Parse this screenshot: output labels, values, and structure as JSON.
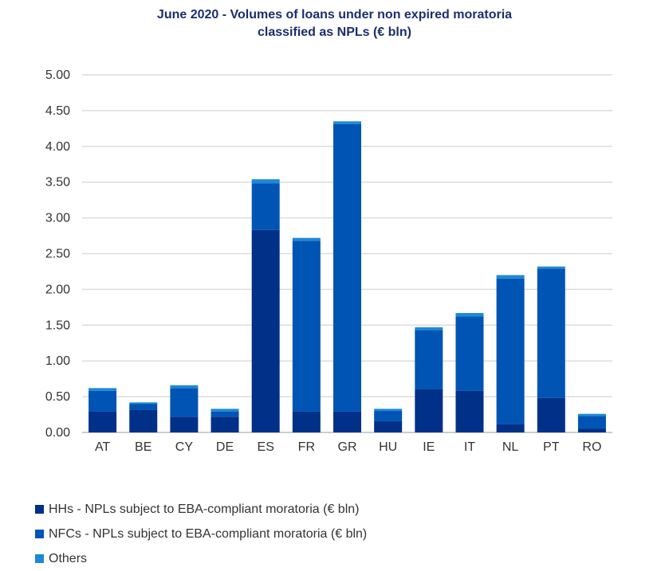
{
  "chart_data": {
    "type": "bar",
    "stacked": true,
    "title_lines": [
      "June 2020 - Volumes of loans under non expired moratoria",
      "classified as NPLs (€ bln)"
    ],
    "categories": [
      "AT",
      "BE",
      "CY",
      "DE",
      "ES",
      "FR",
      "GR",
      "HU",
      "IE",
      "IT",
      "NL",
      "PT",
      "RO"
    ],
    "series": [
      {
        "name": "HHs - NPLs subject to EBA-compliant moratoria (€ bln)",
        "color": "#003087",
        "values": [
          0.29,
          0.32,
          0.22,
          0.22,
          2.83,
          0.29,
          0.29,
          0.16,
          0.61,
          0.58,
          0.12,
          0.48,
          0.05
        ]
      },
      {
        "name": "NFCs - NPLs subject to EBA-compliant moratoria (€ bln)",
        "color": "#0054b4",
        "values": [
          0.29,
          0.08,
          0.4,
          0.07,
          0.65,
          2.39,
          4.02,
          0.14,
          0.82,
          1.04,
          2.03,
          1.81,
          0.18
        ]
      },
      {
        "name": "Others",
        "color": "#1e88d6",
        "values": [
          0.04,
          0.02,
          0.04,
          0.04,
          0.06,
          0.04,
          0.04,
          0.03,
          0.04,
          0.05,
          0.05,
          0.03,
          0.03
        ]
      }
    ],
    "y_ticks": [
      "0.00",
      "0.50",
      "1.00",
      "1.50",
      "2.00",
      "2.50",
      "3.00",
      "3.50",
      "4.00",
      "4.50",
      "5.00"
    ],
    "ylim": [
      0,
      5
    ],
    "grid": true,
    "legend_position": "bottom-left",
    "xlabel": "",
    "ylabel": ""
  }
}
